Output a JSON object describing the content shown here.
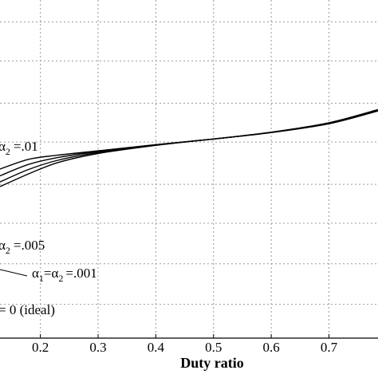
{
  "chart_data": {
    "type": "line",
    "xlabel": "Duty ratio",
    "ylabel": "",
    "xlim": [
      0.13,
      0.785
    ],
    "ylim": [
      0,
      1
    ],
    "grid": true,
    "x_ticks": [
      "0.2",
      "0.3",
      "0.4",
      "0.5",
      "0.6",
      "0.7"
    ],
    "x_tick_values": [
      0.2,
      0.3,
      0.4,
      0.5,
      0.6,
      0.7
    ],
    "y_grid_values": [
      0.1,
      0.22,
      0.34,
      0.455,
      0.58,
      0.695,
      0.82,
      0.935
    ],
    "series": [
      {
        "x": [
          0.13,
          0.18,
          0.23,
          0.3,
          0.4,
          0.5,
          0.6,
          0.7,
          0.785
        ],
        "y": [
          0.5,
          0.529,
          0.541,
          0.554,
          0.572,
          0.589,
          0.608,
          0.634,
          0.672
        ]
      },
      {
        "x": [
          0.13,
          0.18,
          0.23,
          0.3,
          0.4,
          0.5,
          0.6,
          0.7,
          0.785
        ],
        "y": [
          0.48,
          0.514,
          0.534,
          0.552,
          0.572,
          0.589,
          0.608,
          0.635,
          0.673
        ]
      },
      {
        "x": [
          0.13,
          0.18,
          0.23,
          0.3,
          0.4,
          0.5,
          0.6,
          0.7,
          0.785
        ],
        "y": [
          0.462,
          0.499,
          0.526,
          0.549,
          0.571,
          0.589,
          0.609,
          0.636,
          0.675
        ]
      },
      {
        "x": [
          0.13,
          0.18,
          0.23,
          0.3,
          0.4,
          0.5,
          0.6,
          0.7,
          0.785
        ],
        "y": [
          0.448,
          0.486,
          0.519,
          0.546,
          0.57,
          0.589,
          0.609,
          0.637,
          0.676
        ]
      }
    ],
    "annotations": {
      "a01_prefix": "α",
      "a01_sub": "2",
      "a01_value": "=.01",
      "a005_prefix": "α",
      "a005_sub": "2",
      "a005_value": "=.005",
      "a001_a1": "α",
      "a001_sub1": "1",
      "a001_eq": "=α",
      "a001_sub2": "2",
      "a001_value": "=.001",
      "ideal": "= 0 (ideal)"
    }
  }
}
